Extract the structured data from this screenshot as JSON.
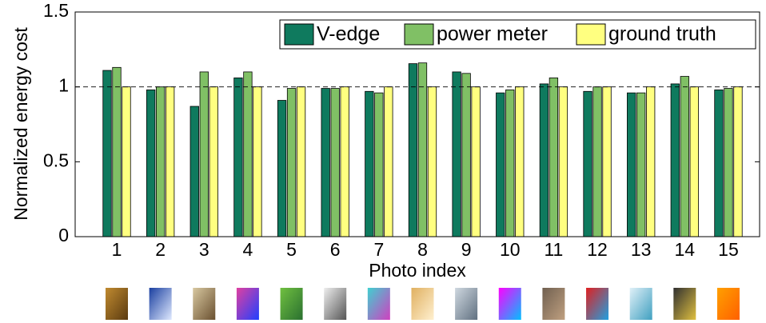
{
  "chart_data": {
    "type": "bar",
    "xlabel": "Photo index",
    "ylabel": "Normalized energy cost",
    "categories": [
      "1",
      "2",
      "3",
      "4",
      "5",
      "6",
      "7",
      "8",
      "9",
      "10",
      "11",
      "12",
      "13",
      "14",
      "15"
    ],
    "series": [
      {
        "name": "V-edge",
        "color": "#0f7a5e",
        "values": [
          1.11,
          0.98,
          0.87,
          1.06,
          0.91,
          0.99,
          0.97,
          1.155,
          1.1,
          0.96,
          1.02,
          0.97,
          0.96,
          1.02,
          0.98
        ]
      },
      {
        "name": "power meter",
        "color": "#80c065",
        "values": [
          1.13,
          1.0,
          1.1,
          1.1,
          0.99,
          0.99,
          0.96,
          1.16,
          1.09,
          0.98,
          1.06,
          1.0,
          0.96,
          1.07,
          0.99
        ]
      },
      {
        "name": "ground truth",
        "color": "#ffff80",
        "values": [
          1,
          1,
          1,
          1,
          1,
          1,
          1,
          1,
          1,
          1,
          1,
          1,
          1,
          1,
          1
        ]
      }
    ],
    "ylim": [
      0,
      1.5
    ],
    "yticks": [
      0,
      0.5,
      1,
      1.5
    ],
    "reference_line": 1,
    "legend": "upper right"
  }
}
